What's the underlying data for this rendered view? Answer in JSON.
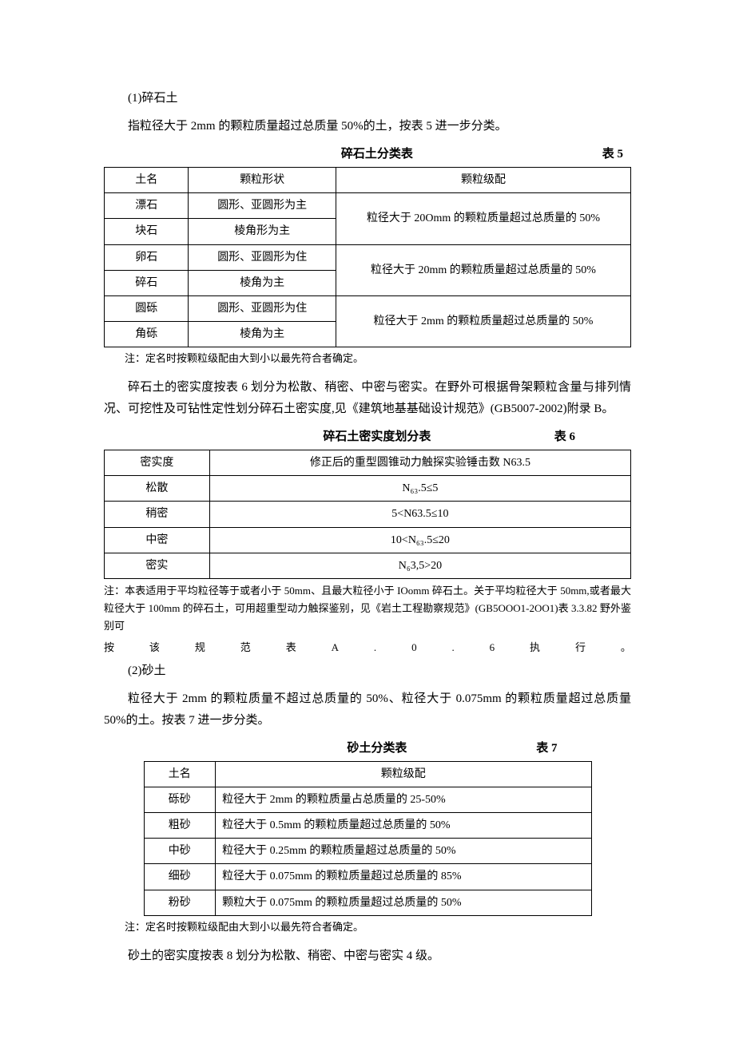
{
  "section1": {
    "heading": "(1)碎石土",
    "intro": "指粒径大于 2mm 的颗粒质量超过总质量 50%的土，按表 5 进一步分类。"
  },
  "table5": {
    "title": "碎石土分类表",
    "label": "表 5",
    "headers": [
      "土名",
      "颗粒形状",
      "颗粒级配"
    ],
    "rows": [
      {
        "name": "漂石",
        "shape": "圆形、亚圆形为主",
        "grade": "粒径大于 20Omm 的颗粒质量超过总质量的 50%"
      },
      {
        "name": "块石",
        "shape": "棱角形为主"
      },
      {
        "name": "卵石",
        "shape": "圆形、亚圆形为住",
        "grade": "粒径大于 20mm 的颗粒质量超过总质量的 50%"
      },
      {
        "name": "碎石",
        "shape": "棱角为主"
      },
      {
        "name": "圆砾",
        "shape": "圆形、亚圆形为住",
        "grade": "粒径大于 2mm 的颗粒质量超过总质量的 50%"
      },
      {
        "name": "角砾",
        "shape": "棱角为主"
      }
    ],
    "note": "注：定名时按颗粒级配由大到小以最先符合者确定。"
  },
  "para_after_t5": "碎石土的密实度按表 6 划分为松散、稍密、中密与密实。在野外可根据骨架颗粒含量与排列情况、可挖性及可钻性定性划分碎石土密实度,见《建筑地基基础设计规范》(GB5007-2002)附录 B。",
  "table6": {
    "title": "碎石土密实度划分表",
    "label": "表 6",
    "headers": [
      "密实度",
      "修正后的重型圆锥动力触探实验锤击数 N63.5"
    ],
    "rows": [
      {
        "a": "松散",
        "b": "N₆₃.5≤5"
      },
      {
        "a": "稍密",
        "b": "5<N63.5≤10"
      },
      {
        "a": "中密",
        "b": "10<N₆₃.5≤20"
      },
      {
        "a": "密实",
        "b": "N₆3,5>20"
      }
    ],
    "note1": "注：本表适用于平均粒径等于或者小于 50mm、且最大粒径小于 IOomm 碎石土。关于平均粒径大于 50mm,或者最大粒径大于 100mm 的碎石土，可用超重型动力触探鉴别，见《岩土工程勘察规范》(GB5OOO1-2OO1)表 3.3.82 野外鉴别可",
    "note2_chars": [
      "按",
      "该",
      "规",
      "范",
      "表",
      "A",
      ".",
      "0",
      ".",
      "6",
      "执",
      "行",
      "。"
    ]
  },
  "section2": {
    "heading": "(2)砂土",
    "intro": "粒径大于 2mm 的颗粒质量不超过总质量的 50%、粒径大于 0.075mm 的颗粒质量超过总质量 50%的土。按表 7 进一步分类。"
  },
  "table7": {
    "title": "砂土分类表",
    "label": "表 7",
    "headers": [
      "土名",
      "颗粒级配"
    ],
    "rows": [
      {
        "a": "砾砂",
        "b": "粒径大于 2mm 的颗粒质量占总质量的 25-50%"
      },
      {
        "a": "粗砂",
        "b": "粒径大于 0.5mm 的颗粒质量超过总质量的 50%"
      },
      {
        "a": "中砂",
        "b": "粒径大于 0.25mm 的颗粒质量超过总质量的 50%"
      },
      {
        "a": "细砂",
        "b": "粒径大于 0.075mm 的颗粒质量超过总质量的 85%"
      },
      {
        "a": "粉砂",
        "b": "颗粒大于 0.075mm 的颗粒质量超过总质量的 50%"
      }
    ],
    "note": "注：定名时按颗粒级配由大到小以最先符合者确定。"
  },
  "para_final": "砂土的密实度按表 8 划分为松散、稍密、中密与密实 4 级。"
}
